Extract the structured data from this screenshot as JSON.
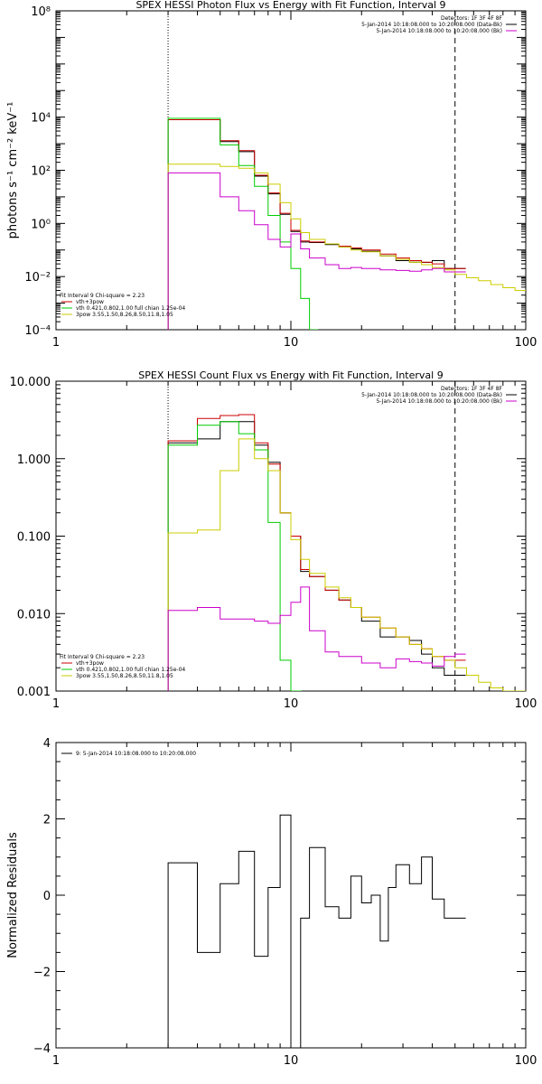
{
  "chart_data": [
    {
      "type": "line",
      "title": "SPEX HESSI Photon Flux vs Energy with Fit Function, Interval 9",
      "ylabel": "photons s⁻¹ cm⁻² keV⁻¹",
      "xlabel": "",
      "xscale": "log",
      "yscale": "log",
      "xlim": [
        1,
        100
      ],
      "ylim": [
        0.0001,
        100000000
      ],
      "xticks": [
        {
          "v": 1,
          "t": "1"
        },
        {
          "v": 10,
          "t": "10"
        },
        {
          "v": 100,
          "t": "100"
        }
      ],
      "yticks": [
        {
          "v": 0.0001,
          "t": "10⁻⁴"
        },
        {
          "v": 0.01,
          "t": "10⁻²"
        },
        {
          "v": 1,
          "t": "10⁰"
        },
        {
          "v": 100,
          "t": "10²"
        },
        {
          "v": 10000,
          "t": "10⁴"
        },
        {
          "v": 100000000,
          "t": "10⁸"
        }
      ],
      "vlines": [
        {
          "x": 3,
          "style": "dotted"
        },
        {
          "x": 50,
          "style": "dashed"
        }
      ],
      "legend_top_right": [
        "Detectors: 1F 3F 4F 8F",
        "5-Jan-2014 10:18:08.000 to 10:20:08.000 (Data-Bk)",
        "5-Jan-2014 10:18:08.000 to 10:20:08.000 (Bk)"
      ],
      "legend_bottom_left": [
        "Fit Interval 9   Chi-square = 2.23",
        "vth+3pow",
        "vth 0.421,0.802,1.00  full chian 1.25e-04",
        "3pow 3.55,1.50,8.26,8.50,11.8,1.05"
      ],
      "series": [
        {
          "color": "#000000",
          "x": [
            3,
            4,
            5,
            6,
            7,
            8,
            9,
            10,
            11,
            12,
            14,
            16,
            18,
            20,
            24,
            28,
            32,
            36,
            40,
            45,
            50
          ],
          "values": [
            8000,
            8000,
            1200,
            500,
            60,
            13,
            2.2,
            0.5,
            0.2,
            0.19,
            0.16,
            0.13,
            0.11,
            0.09,
            0.06,
            0.04,
            0.035,
            0.034,
            0.04,
            0.02,
            0.02
          ]
        },
        {
          "color": "#cc0000",
          "x": [
            3,
            4,
            5,
            6,
            7,
            8,
            9,
            10,
            11,
            12,
            14,
            16,
            18,
            20,
            24,
            28,
            32,
            36,
            40,
            45,
            50
          ],
          "values": [
            8000,
            8000,
            1300,
            550,
            65,
            14,
            2.4,
            0.55,
            0.22,
            0.2,
            0.17,
            0.14,
            0.12,
            0.1,
            0.07,
            0.05,
            0.04,
            0.035,
            0.03,
            0.02,
            0.02
          ]
        },
        {
          "color": "#00cc00",
          "x": [
            3,
            4,
            5,
            6,
            7,
            8,
            9,
            10,
            11,
            12
          ],
          "values": [
            9000,
            9000,
            900,
            150,
            25,
            2,
            0.2,
            0.02,
            0.0015,
            0.0001
          ]
        },
        {
          "color": "#cccc00",
          "x": [
            3,
            4,
            5,
            6,
            7,
            8,
            9,
            10,
            11,
            12,
            14,
            16,
            18,
            20,
            24,
            28,
            32,
            36,
            40,
            45,
            50,
            56,
            63,
            71,
            80,
            90,
            100
          ],
          "values": [
            170,
            170,
            140,
            120,
            80,
            30,
            6,
            1.5,
            0.45,
            0.25,
            0.17,
            0.13,
            0.1,
            0.085,
            0.06,
            0.045,
            0.035,
            0.028,
            0.022,
            0.018,
            0.012,
            0.009,
            0.007,
            0.005,
            0.0038,
            0.003,
            0.003
          ]
        },
        {
          "color": "#cc00cc",
          "x": [
            3,
            4,
            5,
            6,
            7,
            8,
            9,
            10,
            11,
            12,
            14,
            16,
            18,
            20,
            24,
            28,
            32,
            36,
            40,
            45,
            50
          ],
          "values": [
            80,
            80,
            10,
            3,
            0.9,
            0.25,
            0.13,
            0.4,
            0.11,
            0.05,
            0.028,
            0.02,
            0.022,
            0.02,
            0.018,
            0.017,
            0.016,
            0.018,
            0.02,
            0.015,
            0.015
          ]
        }
      ]
    },
    {
      "type": "line",
      "title": "SPEX HESSI Count Flux vs Energy with Fit Function, Interval 9",
      "ylabel": "",
      "xlabel": "",
      "xscale": "log",
      "yscale": "log",
      "xlim": [
        1,
        100
      ],
      "ylim": [
        0.001,
        10
      ],
      "xticks": [
        {
          "v": 1,
          "t": "1"
        },
        {
          "v": 10,
          "t": "10"
        },
        {
          "v": 100,
          "t": "100"
        }
      ],
      "yticks": [
        {
          "v": 0.001,
          "t": "0.001"
        },
        {
          "v": 0.01,
          "t": "0.010"
        },
        {
          "v": 0.1,
          "t": "0.100"
        },
        {
          "v": 1,
          "t": "1.000"
        },
        {
          "v": 10,
          "t": "10.000"
        }
      ],
      "vlines": [
        {
          "x": 3,
          "style": "dotted"
        },
        {
          "x": 50,
          "style": "dashed"
        }
      ],
      "legend_top_right": [
        "Detectors: 1F 3F 4F 8F",
        "5-Jan-2014 10:18:08.000 to 10:20:08.000 (Data-Bk)",
        "5-Jan-2014 10:18:08.000 to 10:20:08.000 (Bk)"
      ],
      "legend_bottom_left": [
        "Fit Interval 9   Chi-square = 2.23",
        "vth+3pow",
        "vth 0.421,0.802,1.00  full chian 1.25e-04",
        "3pow 3.55,1.50,8.26,8.50,11.8,1.05"
      ],
      "series": [
        {
          "color": "#000000",
          "x": [
            3,
            4,
            5,
            6,
            7,
            8,
            9,
            10,
            11,
            12,
            14,
            16,
            18,
            20,
            24,
            28,
            32,
            36,
            40,
            45,
            50
          ],
          "values": [
            1.6,
            1.8,
            3.0,
            3.0,
            1.5,
            0.9,
            0.2,
            0.1,
            0.035,
            0.03,
            0.02,
            0.015,
            0.012,
            0.008,
            0.005,
            0.005,
            0.0045,
            0.003,
            0.002,
            0.0016,
            0.0016
          ]
        },
        {
          "color": "#cc0000",
          "x": [
            3,
            4,
            5,
            6,
            7,
            8,
            9,
            10,
            11,
            12,
            14,
            16,
            18,
            20,
            24,
            28,
            32,
            36,
            40,
            45,
            50
          ],
          "values": [
            1.7,
            3.3,
            3.6,
            3.7,
            1.6,
            0.85,
            0.2,
            0.1,
            0.037,
            0.03,
            0.02,
            0.015,
            0.012,
            0.009,
            0.0065,
            0.005,
            0.004,
            0.0035,
            0.0028,
            0.0025,
            0.0025
          ]
        },
        {
          "color": "#00cc00",
          "x": [
            3,
            4,
            5,
            6,
            7,
            8,
            9,
            10
          ],
          "values": [
            1.5,
            2.7,
            3.0,
            2.1,
            1.3,
            0.15,
            0.0025,
            0.0001
          ]
        },
        {
          "color": "#cccc00",
          "x": [
            3,
            4,
            5,
            6,
            7,
            8,
            9,
            10,
            11,
            12,
            14,
            16,
            18,
            20,
            24,
            28,
            32,
            36,
            40,
            45,
            50,
            56,
            63,
            71,
            80,
            90,
            100
          ],
          "values": [
            0.11,
            0.12,
            0.7,
            1.8,
            1.0,
            0.7,
            0.2,
            0.09,
            0.05,
            0.033,
            0.022,
            0.016,
            0.012,
            0.009,
            0.0065,
            0.005,
            0.004,
            0.0035,
            0.0028,
            0.0025,
            0.002,
            0.0016,
            0.0013,
            0.0011,
            0.001,
            0.0009,
            0.0009
          ]
        },
        {
          "color": "#cc00cc",
          "x": [
            3,
            4,
            5,
            6,
            7,
            8,
            9,
            10,
            11,
            12,
            14,
            16,
            18,
            20,
            24,
            28,
            32,
            36,
            40,
            45,
            50
          ],
          "values": [
            0.011,
            0.012,
            0.0085,
            0.0085,
            0.008,
            0.0075,
            0.0095,
            0.014,
            0.022,
            0.006,
            0.0032,
            0.0028,
            0.0028,
            0.0023,
            0.002,
            0.0026,
            0.0024,
            0.0023,
            0.0021,
            0.0028,
            0.003
          ]
        }
      ]
    },
    {
      "type": "line",
      "title": "",
      "ylabel": "Normalized Residuals",
      "xlabel": "",
      "xscale": "log",
      "yscale": "linear",
      "xlim": [
        1,
        100
      ],
      "ylim": [
        -4,
        4
      ],
      "xticks": [
        {
          "v": 1,
          "t": "1"
        },
        {
          "v": 10,
          "t": "10"
        },
        {
          "v": 100,
          "t": "100"
        }
      ],
      "yticks": [
        {
          "v": -4,
          "t": "−4"
        },
        {
          "v": -2,
          "t": "−2"
        },
        {
          "v": 0,
          "t": "0"
        },
        {
          "v": 2,
          "t": "2"
        },
        {
          "v": 4,
          "t": "4"
        }
      ],
      "legend_top_left": [
        "9: 5-Jan-2014 10:18:08.000 to 10:20:08.000"
      ],
      "series": [
        {
          "color": "#000000",
          "x": [
            3,
            4,
            5,
            6,
            7,
            8,
            9,
            10,
            11,
            12,
            14,
            16,
            18,
            20,
            22,
            24,
            26,
            28,
            32,
            36,
            40,
            45,
            50
          ],
          "values": [
            0.85,
            -1.5,
            0.3,
            1.15,
            -1.6,
            0.2,
            2.1,
            -4.0,
            -0.6,
            1.25,
            -0.3,
            -0.6,
            0.5,
            -0.2,
            0.0,
            -1.2,
            0.2,
            0.8,
            0.3,
            1.0,
            -0.1,
            -0.6,
            -0.6
          ]
        }
      ]
    }
  ]
}
